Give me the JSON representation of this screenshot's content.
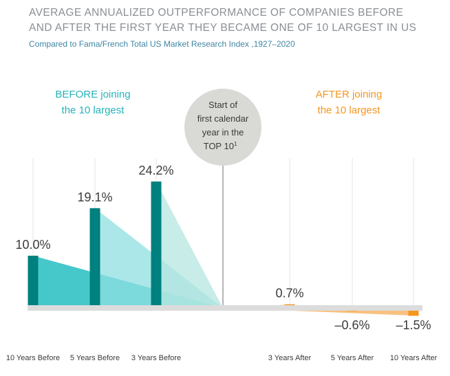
{
  "title": {
    "line1": "AVERAGE ANNUALIZED OUTPERFORMANCE OF COMPANIES BEFORE",
    "line2": "AND AFTER THE FIRST YEAR THEY BECAME ONE OF 10 LARGEST IN US"
  },
  "subtitle": "Compared to Fama/French Total US Market Research Index ,1927–2020",
  "before_label": {
    "line1": "BEFORE joining",
    "line2": "the 10 largest"
  },
  "after_label": {
    "line1": "AFTER joining",
    "line2": "the 10 largest"
  },
  "center_circle": {
    "line1": "Start of",
    "line2": "first calendar",
    "line3": "year in the",
    "line4": "TOP 10",
    "footnote": "1"
  },
  "colors": {
    "before_bar": "#00807f",
    "before_wedges": [
      "#3cc5c8",
      "#8fdfe2",
      "#b5e6e0"
    ],
    "after_bar": "#f5961e",
    "after_wedge": "#f6b25f",
    "axis": "#dcdcdc",
    "text": "#3a3a3a",
    "title": "#8a8f94",
    "subtitle": "#3f86a3",
    "before_text": "#25b3b9",
    "after_text": "#f5961e",
    "circle": "#d9d9d6"
  },
  "chart_data": {
    "type": "bar",
    "categories": [
      "10 Years Before",
      "5 Years Before",
      "3 Years Before",
      "3 Years After",
      "5 Years After",
      "10 Years After"
    ],
    "values": [
      10.0,
      19.1,
      24.2,
      0.7,
      -0.6,
      -1.5
    ],
    "value_labels": [
      "10.0%",
      "19.1%",
      "24.2%",
      "0.7%",
      "–0.6%",
      "–1.5%"
    ],
    "groups": [
      "before",
      "before",
      "before",
      "after",
      "after",
      "after"
    ],
    "ylim": [
      -1.5,
      24.2
    ],
    "grid": "vertical"
  }
}
